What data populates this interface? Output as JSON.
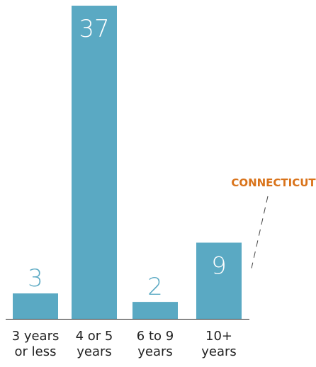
{
  "chart_data": {
    "type": "bar",
    "categories": [
      [
        "3 years",
        "or less"
      ],
      [
        "4 or 5",
        "years"
      ],
      [
        "6 to 9",
        "years"
      ],
      [
        "10+",
        "years"
      ]
    ],
    "values": [
      3,
      37,
      2,
      9
    ],
    "ylim": [
      0,
      37
    ],
    "title": "",
    "xlabel": "",
    "ylabel": "",
    "grid": false,
    "annotation": {
      "text": "CONNECTICUT",
      "target_category_index": 3
    }
  },
  "colors": {
    "bar": "#5aa9c3",
    "label_inside": "#ffffff",
    "label_outside": "#5aa9c3",
    "tick_text": "#222222",
    "axis_line": "#222222",
    "annotation": "#d9731a",
    "leader_line": "#444444"
  }
}
